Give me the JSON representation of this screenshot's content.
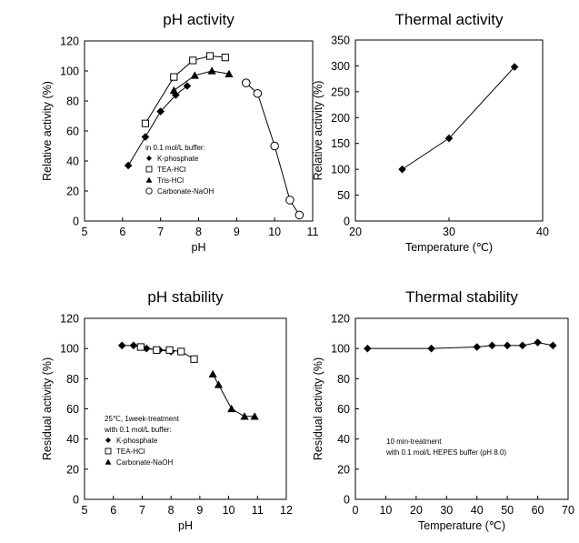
{
  "chart_data": [
    {
      "type": "line",
      "title": "pH activity",
      "xlabel": "pH",
      "ylabel": "Relative activity (%)",
      "xlim": [
        5,
        11
      ],
      "ylim": [
        0,
        120
      ],
      "xticks": [
        5,
        6,
        7,
        8,
        9,
        10,
        11
      ],
      "yticks": [
        0,
        20,
        40,
        60,
        80,
        100,
        120
      ],
      "legend_title": "in 0.1 mol/L buffer:",
      "legend_position": "bottom-left",
      "series": [
        {
          "name": "K-phosphate",
          "marker": "diamond",
          "x": [
            6.15,
            6.6,
            7.0,
            7.4,
            7.7
          ],
          "y": [
            37,
            56,
            73,
            84,
            90
          ]
        },
        {
          "name": "TEA-HCl",
          "marker": "square-open",
          "x": [
            6.6,
            7.35,
            7.85,
            8.3,
            8.7
          ],
          "y": [
            65,
            96,
            107,
            110,
            109
          ]
        },
        {
          "name": "Tris-HCl",
          "marker": "triangle",
          "x": [
            7.35,
            7.9,
            8.35,
            8.8
          ],
          "y": [
            87,
            97,
            100,
            98
          ]
        },
        {
          "name": "Carbonate-NaOH",
          "marker": "circle-open",
          "x": [
            9.25,
            9.55,
            10.0,
            10.4,
            10.65
          ],
          "y": [
            92,
            85,
            50,
            14,
            4
          ]
        }
      ]
    },
    {
      "type": "line",
      "title": "Thermal activity",
      "xlabel": "Temperature (℃)",
      "ylabel": "Relative activity (%)",
      "xlim": [
        20,
        40
      ],
      "ylim": [
        0,
        350
      ],
      "xticks": [
        20,
        30,
        40
      ],
      "yticks": [
        0,
        50,
        100,
        150,
        200,
        250,
        300,
        350
      ],
      "series": [
        {
          "marker": "diamond",
          "x": [
            25,
            30,
            37
          ],
          "y": [
            100,
            160,
            298
          ]
        }
      ]
    },
    {
      "type": "line",
      "title": "pH stability",
      "xlabel": "pH",
      "ylabel": "Residual activity (%)",
      "xlim": [
        5,
        12
      ],
      "ylim": [
        0,
        120
      ],
      "xticks": [
        5,
        6,
        7,
        8,
        9,
        10,
        11,
        12
      ],
      "yticks": [
        0,
        20,
        40,
        60,
        80,
        100,
        120
      ],
      "legend_title": [
        "25℃, 1week-treatment",
        "with 0.1 mol/L buffer:"
      ],
      "legend_position": "bottom-left",
      "series": [
        {
          "name": "K-phosphate",
          "marker": "diamond",
          "x": [
            6.3,
            6.7,
            7.15,
            7.6,
            8.0
          ],
          "y": [
            102,
            102,
            100,
            99,
            98
          ]
        },
        {
          "name": "TEA-HCl",
          "marker": "square-open",
          "x": [
            6.95,
            7.5,
            7.95,
            8.35,
            8.8
          ],
          "y": [
            101,
            99,
            99,
            98,
            93
          ]
        },
        {
          "name": "Carbonate-NaOH",
          "marker": "triangle",
          "x": [
            9.45,
            9.65,
            10.1,
            10.55,
            10.9
          ],
          "y": [
            83,
            76,
            60,
            55,
            55
          ]
        }
      ]
    },
    {
      "type": "line",
      "title": "Thermal stability",
      "xlabel": "Temperature (℃)",
      "ylabel": "Residual activity (%)",
      "xlim": [
        0,
        70
      ],
      "ylim": [
        0,
        120
      ],
      "xticks": [
        0,
        10,
        20,
        30,
        40,
        50,
        60,
        70
      ],
      "yticks": [
        0,
        20,
        40,
        60,
        80,
        100,
        120
      ],
      "annotation": [
        "10 min-treatment",
        "with 0.1 mol/L HEPES buffer (pH 8.0)"
      ],
      "series": [
        {
          "marker": "diamond",
          "x": [
            4,
            25,
            40,
            45,
            50,
            55,
            60,
            65
          ],
          "y": [
            100,
            100,
            101,
            102,
            102,
            102,
            104,
            102
          ]
        }
      ]
    }
  ]
}
